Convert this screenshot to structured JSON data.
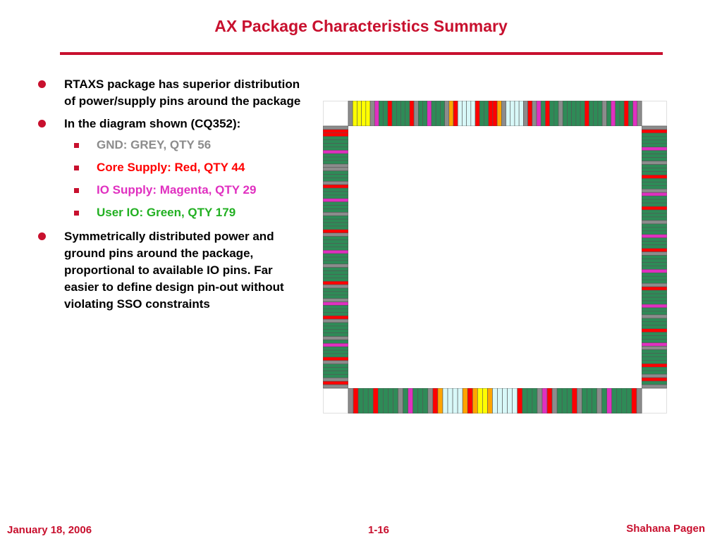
{
  "slide": {
    "title": "AX Package Characteristics Summary",
    "bullets": [
      {
        "text": "RTAXS package has superior distribution of power/supply pins around the package"
      },
      {
        "text": "In the diagram shown (CQ352):"
      }
    ],
    "sub_bullets": [
      {
        "text": "GND: GREY, QTY 56",
        "color": "#8c8c8c"
      },
      {
        "text": "Core Supply: Red, QTY 44",
        "color": "#ff0000"
      },
      {
        "text": "IO Supply: Magenta, QTY 29",
        "color": "#e030c0"
      },
      {
        "text": "User IO: Green, QTY 179",
        "color": "#22b022"
      }
    ],
    "last_bullet": {
      "text": "Symmetrically distributed power and ground pins around the package, proportional to available IO pins. Far easier to define design pin-out without violating SSO constraints"
    }
  },
  "footer": {
    "date": "January 18, 2006",
    "page": "1-16",
    "author": "Shahana Pagen"
  },
  "colors": {
    "accent": "#c8102e",
    "gnd": "#8c8c8c",
    "core": "#ff0000",
    "io_supply": "#e030c0",
    "user_io": "#2e8b57",
    "special_yellow": "#ffff00",
    "special_lightblue": "#d8f8f8",
    "special_orange": "#ffa500"
  },
  "package_diagram": {
    "top_pins": [
      "gnd",
      "yellow",
      "yellow",
      "yellow",
      "yellow",
      "gnd",
      "magenta",
      "green",
      "green",
      "red",
      "green",
      "green",
      "green",
      "green",
      "red",
      "gnd",
      "green",
      "green",
      "magenta",
      "green",
      "green",
      "green",
      "gnd",
      "orange",
      "red",
      "lightblue",
      "lightblue",
      "lightblue",
      "lightblue",
      "red",
      "green",
      "green",
      "red",
      "red",
      "orange",
      "gnd",
      "lightblue",
      "lightblue",
      "lightblue",
      "lightblue",
      "gnd",
      "red",
      "gnd",
      "magenta",
      "green",
      "red",
      "green",
      "green",
      "gnd",
      "green",
      "green",
      "green",
      "green",
      "green",
      "red",
      "green",
      "green",
      "green",
      "gnd",
      "green",
      "magenta",
      "green",
      "green",
      "red",
      "green",
      "magenta",
      "gnd"
    ],
    "bottom_pins": [
      "gnd",
      "red",
      "green",
      "green",
      "green",
      "red",
      "green",
      "green",
      "green",
      "green",
      "gnd",
      "green",
      "magenta",
      "green",
      "green",
      "green",
      "gnd",
      "red",
      "orange",
      "lightblue",
      "lightblue",
      "lightblue",
      "lightblue",
      "orange",
      "red",
      "orange",
      "yellow",
      "yellow",
      "orange",
      "lightblue",
      "lightblue",
      "lightblue",
      "lightblue",
      "lightblue",
      "red",
      "green",
      "green",
      "green",
      "gnd",
      "magenta",
      "red",
      "gnd",
      "green",
      "green",
      "green",
      "red",
      "gnd",
      "green",
      "green",
      "green",
      "gnd",
      "green",
      "magenta",
      "green",
      "green",
      "green",
      "green",
      "red",
      "gnd"
    ],
    "left_pins": [
      "gnd",
      "red",
      "red",
      "green",
      "green",
      "green",
      "green",
      "magenta",
      "green",
      "green",
      "green",
      "gnd",
      "gnd",
      "green",
      "green",
      "green",
      "gnd",
      "red",
      "green",
      "green",
      "green",
      "magenta",
      "green",
      "green",
      "green",
      "gnd",
      "green",
      "green",
      "green",
      "green",
      "red",
      "gnd",
      "green",
      "green",
      "green",
      "green",
      "magenta",
      "green",
      "green",
      "green",
      "gnd",
      "green",
      "green",
      "green",
      "green",
      "red",
      "gnd",
      "green",
      "green",
      "green",
      "gnd",
      "magenta",
      "green",
      "green",
      "green",
      "red",
      "gnd",
      "green",
      "green",
      "green",
      "green",
      "gnd",
      "green",
      "magenta",
      "green",
      "green",
      "green",
      "red",
      "gnd",
      "green",
      "green",
      "green",
      "green",
      "gnd",
      "red",
      "gnd"
    ],
    "right_pins": [
      "gnd",
      "red",
      "green",
      "green",
      "green",
      "green",
      "magenta",
      "green",
      "green",
      "green",
      "gnd",
      "green",
      "green",
      "green",
      "red",
      "green",
      "green",
      "green",
      "gnd",
      "magenta",
      "green",
      "green",
      "green",
      "red",
      "green",
      "green",
      "green",
      "gnd",
      "green",
      "green",
      "green",
      "magenta",
      "green",
      "green",
      "green",
      "red",
      "gnd",
      "green",
      "green",
      "green",
      "green",
      "magenta",
      "green",
      "green",
      "green",
      "gnd",
      "red",
      "green",
      "green",
      "green",
      "green",
      "magenta",
      "green",
      "green",
      "gnd",
      "green",
      "green",
      "green",
      "red",
      "green",
      "green",
      "green",
      "magenta",
      "gnd",
      "green",
      "green",
      "green",
      "green",
      "red",
      "green",
      "green",
      "gnd",
      "red",
      "green",
      "gnd"
    ]
  }
}
